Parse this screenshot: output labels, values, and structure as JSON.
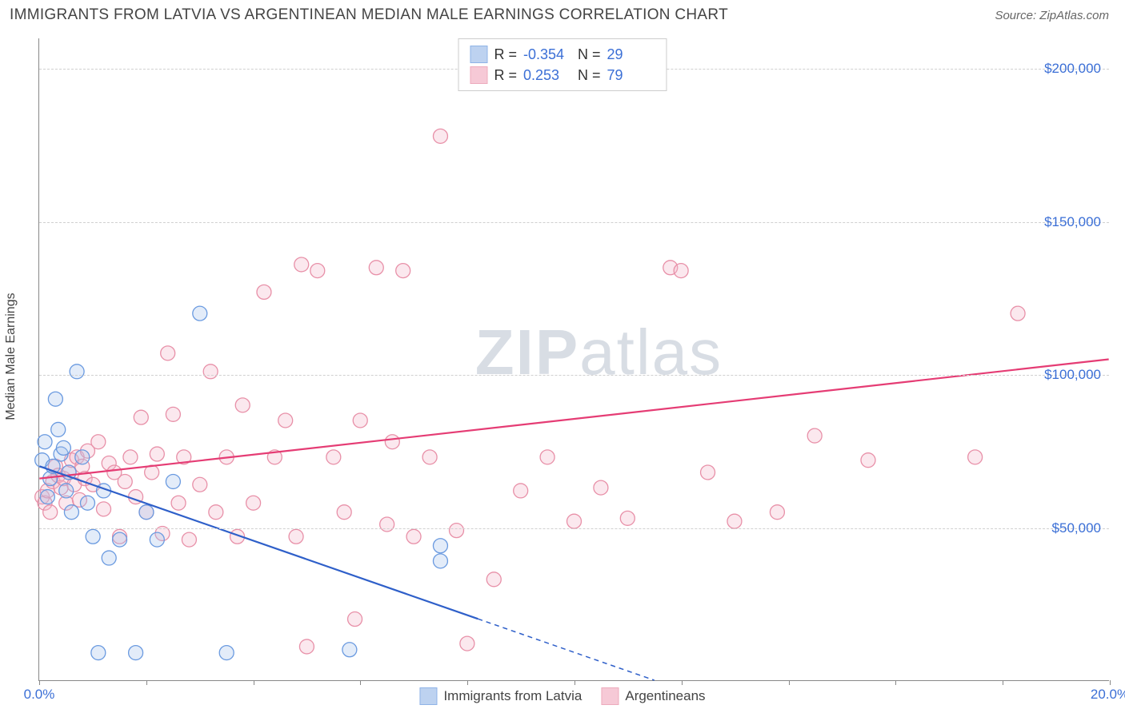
{
  "header": {
    "title": "IMMIGRANTS FROM LATVIA VS ARGENTINEAN MEDIAN MALE EARNINGS CORRELATION CHART",
    "source": "Source: ZipAtlas.com"
  },
  "chart": {
    "type": "scatter",
    "background_color": "#ffffff",
    "grid_color": "#d0d0d0",
    "axis_color": "#888888",
    "ylabel": "Median Male Earnings",
    "label_fontsize": 16,
    "tick_label_color": "#3b6fd6",
    "tick_fontsize": 17,
    "xlim": [
      0,
      20
    ],
    "ylim": [
      0,
      210000
    ],
    "xtick_positions": [
      0,
      2,
      4,
      6,
      8,
      10,
      12,
      14,
      16,
      18,
      20
    ],
    "xtick_labels": {
      "0": "0.0%",
      "20": "20.0%"
    },
    "ytick_positions": [
      50000,
      100000,
      150000,
      200000
    ],
    "ytick_labels": [
      "$50,000",
      "$100,000",
      "$150,000",
      "$200,000"
    ],
    "marker_radius": 9,
    "marker_fill_opacity": 0.32,
    "marker_stroke_width": 1.3,
    "line_width": 2.2,
    "watermark_text_bold": "ZIP",
    "watermark_text_light": "atlas",
    "watermark_color": "#d8dde4"
  },
  "series": {
    "latvia": {
      "label": "Immigrants from Latvia",
      "color_stroke": "#6a9ae0",
      "color_fill": "#a8c3ec",
      "line_color": "#2e5fc9",
      "R": "-0.354",
      "N": "29",
      "points": [
        [
          0.05,
          72000
        ],
        [
          0.1,
          78000
        ],
        [
          0.15,
          60000
        ],
        [
          0.2,
          66000
        ],
        [
          0.25,
          70000
        ],
        [
          0.3,
          92000
        ],
        [
          0.35,
          82000
        ],
        [
          0.4,
          74000
        ],
        [
          0.45,
          76000
        ],
        [
          0.5,
          62000
        ],
        [
          0.55,
          68000
        ],
        [
          0.6,
          55000
        ],
        [
          0.7,
          101000
        ],
        [
          0.8,
          73000
        ],
        [
          0.9,
          58000
        ],
        [
          1.0,
          47000
        ],
        [
          1.1,
          9000
        ],
        [
          1.2,
          62000
        ],
        [
          1.3,
          40000
        ],
        [
          1.5,
          46000
        ],
        [
          1.8,
          9000
        ],
        [
          2.0,
          55000
        ],
        [
          2.2,
          46000
        ],
        [
          2.5,
          65000
        ],
        [
          3.0,
          120000
        ],
        [
          3.5,
          9000
        ],
        [
          5.8,
          10000
        ],
        [
          7.5,
          39000
        ],
        [
          7.5,
          44000
        ]
      ],
      "trend": {
        "x1": 0,
        "y1": 70000,
        "x2": 11.5,
        "y2": 0,
        "dashed_after_x": 8.2
      }
    },
    "argentineans": {
      "label": "Argentineans",
      "color_stroke": "#e890a8",
      "color_fill": "#f4b8c9",
      "line_color": "#e53c74",
      "R": "0.253",
      "N": "79",
      "points": [
        [
          0.05,
          60000
        ],
        [
          0.1,
          58000
        ],
        [
          0.15,
          62000
        ],
        [
          0.2,
          55000
        ],
        [
          0.25,
          65000
        ],
        [
          0.3,
          70000
        ],
        [
          0.35,
          67000
        ],
        [
          0.4,
          63000
        ],
        [
          0.45,
          66000
        ],
        [
          0.5,
          58000
        ],
        [
          0.55,
          68000
        ],
        [
          0.6,
          72000
        ],
        [
          0.65,
          64000
        ],
        [
          0.7,
          73000
        ],
        [
          0.75,
          59000
        ],
        [
          0.8,
          70000
        ],
        [
          0.85,
          66000
        ],
        [
          0.9,
          75000
        ],
        [
          1.0,
          64000
        ],
        [
          1.1,
          78000
        ],
        [
          1.2,
          56000
        ],
        [
          1.3,
          71000
        ],
        [
          1.4,
          68000
        ],
        [
          1.5,
          47000
        ],
        [
          1.6,
          65000
        ],
        [
          1.7,
          73000
        ],
        [
          1.8,
          60000
        ],
        [
          1.9,
          86000
        ],
        [
          2.0,
          55000
        ],
        [
          2.1,
          68000
        ],
        [
          2.2,
          74000
        ],
        [
          2.3,
          48000
        ],
        [
          2.4,
          107000
        ],
        [
          2.5,
          87000
        ],
        [
          2.6,
          58000
        ],
        [
          2.7,
          73000
        ],
        [
          2.8,
          46000
        ],
        [
          3.0,
          64000
        ],
        [
          3.2,
          101000
        ],
        [
          3.3,
          55000
        ],
        [
          3.5,
          73000
        ],
        [
          3.7,
          47000
        ],
        [
          3.8,
          90000
        ],
        [
          4.0,
          58000
        ],
        [
          4.2,
          127000
        ],
        [
          4.4,
          73000
        ],
        [
          4.6,
          85000
        ],
        [
          4.8,
          47000
        ],
        [
          4.9,
          136000
        ],
        [
          5.0,
          11000
        ],
        [
          5.2,
          134000
        ],
        [
          5.5,
          73000
        ],
        [
          5.7,
          55000
        ],
        [
          5.9,
          20000
        ],
        [
          6.0,
          85000
        ],
        [
          6.3,
          135000
        ],
        [
          6.5,
          51000
        ],
        [
          6.6,
          78000
        ],
        [
          6.8,
          134000
        ],
        [
          7.0,
          47000
        ],
        [
          7.3,
          73000
        ],
        [
          7.5,
          178000
        ],
        [
          7.8,
          49000
        ],
        [
          8.0,
          12000
        ],
        [
          8.5,
          33000
        ],
        [
          9.0,
          62000
        ],
        [
          9.5,
          73000
        ],
        [
          10.0,
          52000
        ],
        [
          10.5,
          63000
        ],
        [
          11.0,
          53000
        ],
        [
          11.8,
          135000
        ],
        [
          12.0,
          134000
        ],
        [
          12.5,
          68000
        ],
        [
          13.0,
          52000
        ],
        [
          13.8,
          55000
        ],
        [
          18.3,
          120000
        ],
        [
          17.5,
          73000
        ],
        [
          14.5,
          80000
        ],
        [
          15.5,
          72000
        ]
      ],
      "trend": {
        "x1": 0,
        "y1": 66000,
        "x2": 20,
        "y2": 105000
      }
    }
  },
  "stats_box": {
    "rows": [
      {
        "series": "latvia",
        "R_label": "R =",
        "N_label": "N ="
      },
      {
        "series": "argentineans",
        "R_label": "R =",
        "N_label": "N ="
      }
    ]
  }
}
